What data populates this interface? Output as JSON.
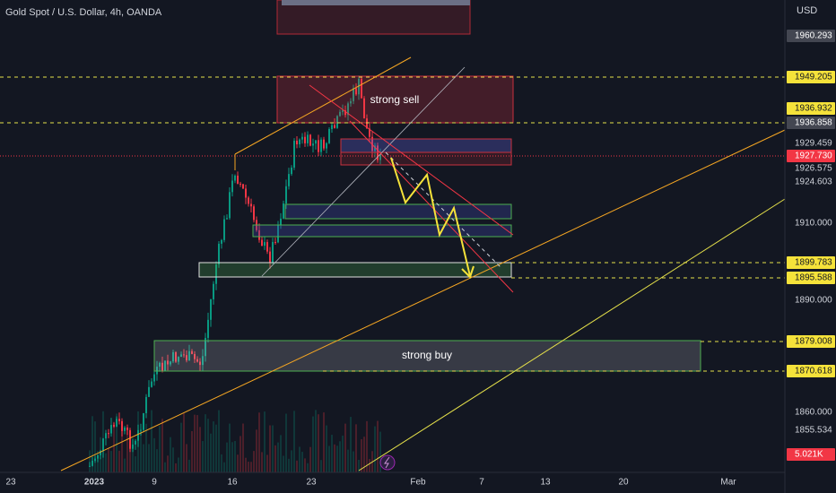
{
  "header": {
    "title": "Gold Spot / U.S. Dollar, 4h, OANDA",
    "currency": "USD"
  },
  "price_axis": {
    "labels": [
      {
        "text": "1960.293",
        "style": "gray"
      },
      {
        "text": "1949.205",
        "style": "yellow"
      },
      {
        "text": "1936.932",
        "style": "yellow"
      },
      {
        "text": "1936.858",
        "style": "gray"
      },
      {
        "text": "1929.459",
        "style": "plain"
      },
      {
        "text": "1927.730",
        "style": "red"
      },
      {
        "text": "1926.575",
        "style": "plain"
      },
      {
        "text": "1924.603",
        "style": "plain"
      },
      {
        "text": "1910.000",
        "style": "plain"
      },
      {
        "text": "1899.783",
        "style": "yellow"
      },
      {
        "text": "1895.588",
        "style": "yellow"
      },
      {
        "text": "1890.000",
        "style": "plain"
      },
      {
        "text": "1879.008",
        "style": "yellow"
      },
      {
        "text": "1870.618",
        "style": "yellow"
      },
      {
        "text": "1860.000",
        "style": "plain"
      },
      {
        "text": "1855.534",
        "style": "plain"
      },
      {
        "text": "5.021K",
        "style": "red"
      }
    ]
  },
  "time_axis": {
    "labels": [
      "23",
      "2023",
      "9",
      "16",
      "23",
      "Feb",
      "7",
      "13",
      "20",
      "Mar"
    ]
  },
  "annotations": {
    "sell_zone": "strong sell",
    "buy_zone": "strong buy"
  }
}
